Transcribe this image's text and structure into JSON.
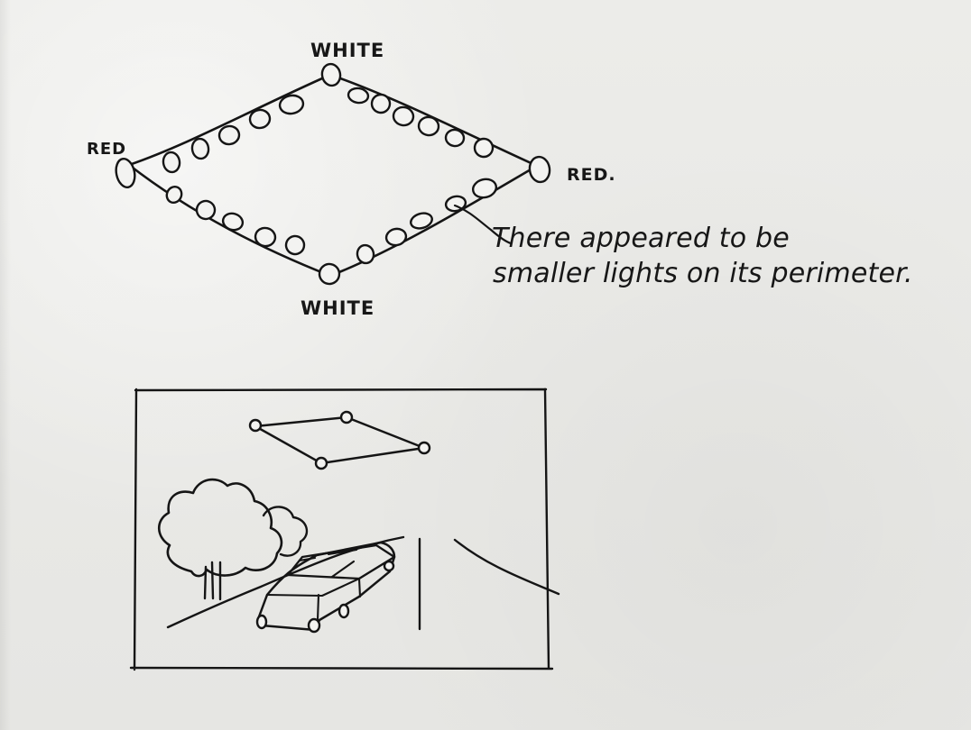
{
  "sketch": {
    "top_label": "WHITE",
    "left_label": "RED",
    "right_label": "RED.",
    "bottom_label": "WHITE",
    "note_line1": "There appeared to be",
    "note_line2": "smaller lights on its perimeter."
  },
  "colors": {
    "paper": "#e9e9e7",
    "ink": "#151515"
  }
}
